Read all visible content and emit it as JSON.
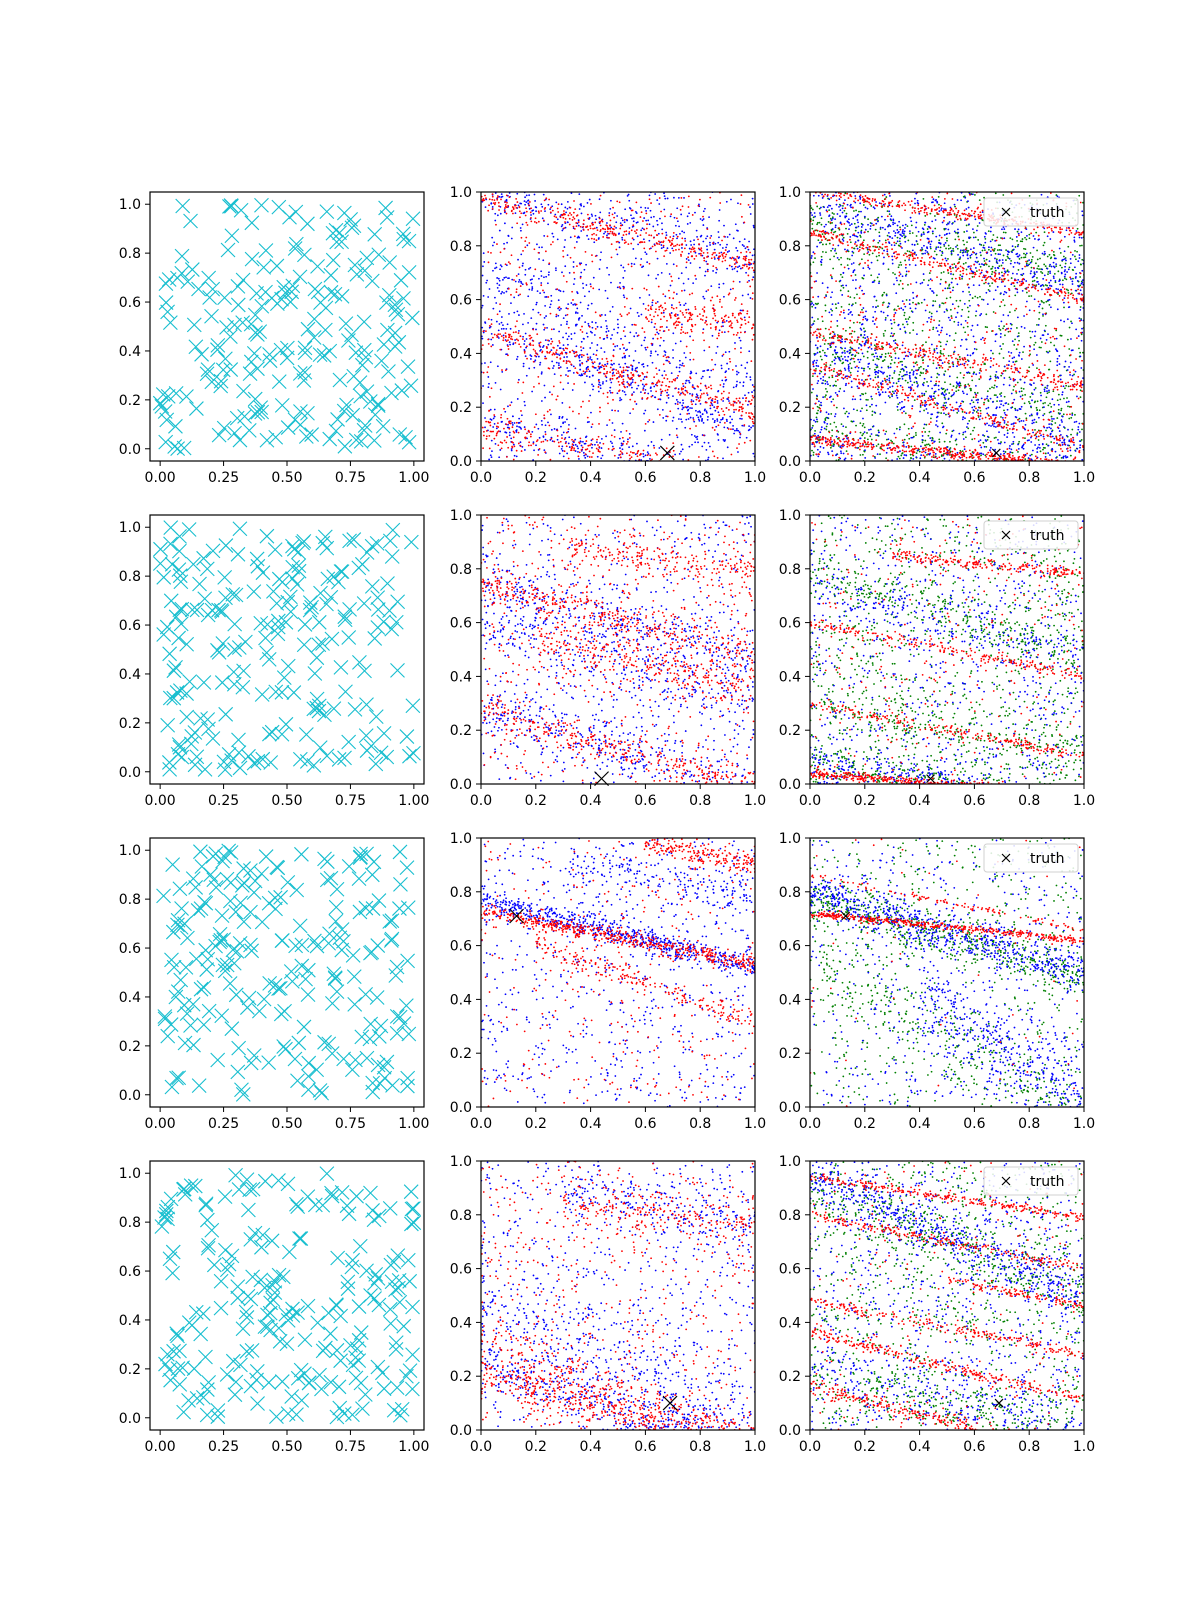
{
  "colors": {
    "cyan": "#17becf",
    "blue": "#0000ff",
    "red": "#ff0000",
    "green": "#008000",
    "truth": "#000000"
  },
  "legend": {
    "label": "truth",
    "placement": "top-right"
  },
  "chart_data": [
    {
      "type": "scatter",
      "row": 0,
      "panel": "samples",
      "xlim": [
        -0.04,
        1.04
      ],
      "ylim": [
        -0.05,
        1.05
      ],
      "xticks": [
        "0.00",
        "0.25",
        "0.50",
        "0.75",
        "1.00"
      ],
      "yticks": [
        "0.0",
        "0.2",
        "0.4",
        "0.6",
        "0.8",
        "1.0"
      ],
      "series": [
        {
          "color": "cyan",
          "marker": "x",
          "count": 220,
          "seed": 11
        }
      ]
    },
    {
      "type": "scatter",
      "row": 0,
      "panel": "posterior",
      "xlim": [
        0,
        1
      ],
      "ylim": [
        0,
        1
      ],
      "xticks": [
        "0.0",
        "0.2",
        "0.4",
        "0.6",
        "0.8",
        "1.0"
      ],
      "yticks": [
        "0.0",
        "0.2",
        "0.4",
        "0.6",
        "0.8",
        "1.0"
      ],
      "truth": [
        0.68,
        0.03
      ],
      "series": [
        {
          "color": "blue",
          "bands": [
            [
              0,
              1.0,
              -0.25,
              0.04,
              250
            ],
            [
              0,
              0.5,
              -0.4,
              0.04,
              300
            ],
            [
              0,
              0.15,
              -0.25,
              0.04,
              250
            ],
            [
              0,
              0.7,
              -0.5,
              0.06,
              200
            ]
          ],
          "background": 700
        },
        {
          "color": "red",
          "bands": [
            [
              0,
              0.98,
              -0.25,
              0.02,
              300
            ],
            [
              0,
              0.48,
              -0.3,
              0.025,
              300
            ],
            [
              0,
              0.12,
              -0.2,
              0.03,
              250
            ],
            [
              0.6,
              0.55,
              -0.1,
              0.03,
              150
            ]
          ],
          "background": 500
        }
      ]
    },
    {
      "type": "scatter",
      "row": 0,
      "panel": "posterior-legend",
      "xlim": [
        0,
        1
      ],
      "ylim": [
        0,
        1
      ],
      "xticks": [
        "0.0",
        "0.2",
        "0.4",
        "0.6",
        "0.8",
        "1.0"
      ],
      "yticks": [
        "0.0",
        "0.2",
        "0.4",
        "0.6",
        "0.8",
        "1.0"
      ],
      "truth": [
        0.68,
        0.03
      ],
      "legend": true,
      "series": [
        {
          "color": "green",
          "bands": [
            [
              0,
              0.9,
              -0.2,
              0.05,
              200
            ],
            [
              0,
              0.45,
              -0.3,
              0.05,
              200
            ],
            [
              0,
              0.12,
              -0.2,
              0.04,
              200
            ]
          ],
          "background": 900
        },
        {
          "color": "blue",
          "bands": [
            [
              0,
              0.95,
              -0.3,
              0.04,
              300
            ],
            [
              0,
              0.4,
              -0.35,
              0.06,
              300
            ],
            [
              0,
              0.08,
              -0.15,
              0.05,
              200
            ]
          ],
          "background": 1100
        },
        {
          "color": "red",
          "bands": [
            [
              0,
              1.0,
              -0.15,
              0.01,
              250
            ],
            [
              0,
              0.85,
              -0.25,
              0.01,
              250
            ],
            [
              0,
              0.48,
              -0.2,
              0.015,
              250
            ],
            [
              0,
              0.08,
              -0.1,
              0.01,
              400
            ],
            [
              0,
              0.35,
              -0.3,
              0.015,
              200
            ]
          ],
          "background": 400
        }
      ]
    },
    {
      "type": "scatter",
      "row": 1,
      "panel": "samples",
      "xlim": [
        -0.04,
        1.04
      ],
      "ylim": [
        -0.05,
        1.05
      ],
      "xticks": [
        "0.00",
        "0.25",
        "0.50",
        "0.75",
        "1.00"
      ],
      "yticks": [
        "0.0",
        "0.2",
        "0.4",
        "0.6",
        "0.8",
        "1.0"
      ],
      "series": [
        {
          "color": "cyan",
          "marker": "x",
          "count": 220,
          "seed": 23
        }
      ]
    },
    {
      "type": "scatter",
      "row": 1,
      "panel": "posterior",
      "xlim": [
        0,
        1
      ],
      "ylim": [
        0,
        1
      ],
      "xticks": [
        "0.0",
        "0.2",
        "0.4",
        "0.6",
        "0.8",
        "1.0"
      ],
      "yticks": [
        "0.0",
        "0.2",
        "0.4",
        "0.6",
        "0.8",
        "1.0"
      ],
      "truth": [
        0.44,
        0.02
      ],
      "series": [
        {
          "color": "blue",
          "bands": [
            [
              0,
              0.75,
              -0.3,
              0.05,
              300
            ],
            [
              0,
              0.3,
              -0.35,
              0.05,
              300
            ],
            [
              0,
              0.6,
              -0.3,
              0.06,
              250
            ]
          ],
          "background": 600
        },
        {
          "color": "red",
          "bands": [
            [
              0,
              0.74,
              -0.25,
              0.03,
              300
            ],
            [
              0,
              0.28,
              -0.3,
              0.03,
              300
            ],
            [
              0.3,
              0.88,
              -0.15,
              0.03,
              200
            ],
            [
              0.2,
              0.55,
              -0.25,
              0.04,
              250
            ]
          ],
          "background": 600
        }
      ]
    },
    {
      "type": "scatter",
      "row": 1,
      "panel": "posterior-legend",
      "xlim": [
        0,
        1
      ],
      "ylim": [
        0,
        1
      ],
      "xticks": [
        "0.0",
        "0.2",
        "0.4",
        "0.6",
        "0.8",
        "1.0"
      ],
      "yticks": [
        "0.0",
        "0.2",
        "0.4",
        "0.6",
        "0.8",
        "1.0"
      ],
      "truth": [
        0.44,
        0.02
      ],
      "legend": true,
      "series": [
        {
          "color": "green",
          "bands": [
            [
              0,
              0.78,
              -0.3,
              0.04,
              250
            ],
            [
              0,
              0.08,
              -0.15,
              0.03,
              300
            ],
            [
              0,
              0.3,
              -0.2,
              0.05,
              200
            ]
          ],
          "background": 900
        },
        {
          "color": "blue",
          "bands": [
            [
              0,
              0.08,
              -0.15,
              0.03,
              300
            ],
            [
              0,
              0.75,
              -0.3,
              0.05,
              200
            ]
          ],
          "background": 700
        },
        {
          "color": "red",
          "bands": [
            [
              0,
              0.04,
              -0.08,
              0.008,
              500
            ],
            [
              0,
              0.6,
              -0.2,
              0.01,
              200
            ],
            [
              0,
              0.3,
              -0.2,
              0.01,
              200
            ],
            [
              0.3,
              0.85,
              -0.1,
              0.01,
              200
            ]
          ],
          "background": 300
        }
      ]
    },
    {
      "type": "scatter",
      "row": 2,
      "panel": "samples",
      "xlim": [
        -0.04,
        1.04
      ],
      "ylim": [
        -0.05,
        1.05
      ],
      "xticks": [
        "0.00",
        "0.25",
        "0.50",
        "0.75",
        "1.00"
      ],
      "yticks": [
        "0.0",
        "0.2",
        "0.4",
        "0.6",
        "0.8",
        "1.0"
      ],
      "series": [
        {
          "color": "cyan",
          "marker": "x",
          "count": 220,
          "seed": 37
        }
      ]
    },
    {
      "type": "scatter",
      "row": 2,
      "panel": "posterior",
      "xlim": [
        0,
        1
      ],
      "ylim": [
        0,
        1
      ],
      "xticks": [
        "0.0",
        "0.2",
        "0.4",
        "0.6",
        "0.8",
        "1.0"
      ],
      "yticks": [
        "0.0",
        "0.2",
        "0.4",
        "0.6",
        "0.8",
        "1.0"
      ],
      "truth": [
        0.13,
        0.71
      ],
      "series": [
        {
          "color": "blue",
          "bands": [
            [
              0,
              0.77,
              -0.25,
              0.02,
              600
            ],
            [
              0.3,
              0.9,
              -0.15,
              0.04,
              150
            ]
          ],
          "background": 700
        },
        {
          "color": "red",
          "bands": [
            [
              0,
              0.73,
              -0.2,
              0.015,
              500
            ],
            [
              0.2,
              0.6,
              -0.35,
              0.02,
              200
            ],
            [
              0.6,
              0.98,
              -0.2,
              0.02,
              200
            ]
          ],
          "background": 300
        }
      ]
    },
    {
      "type": "scatter",
      "row": 2,
      "panel": "posterior-legend",
      "xlim": [
        0,
        1
      ],
      "ylim": [
        0,
        1
      ],
      "xticks": [
        "0.0",
        "0.2",
        "0.4",
        "0.6",
        "0.8",
        "1.0"
      ],
      "yticks": [
        "0.0",
        "0.2",
        "0.4",
        "0.6",
        "0.8",
        "1.0"
      ],
      "truth": [
        0.13,
        0.71
      ],
      "legend": true,
      "series": [
        {
          "color": "green",
          "bands": [
            [
              0,
              0.78,
              -0.3,
              0.04,
              500
            ],
            [
              0,
              0.55,
              -0.6,
              0.08,
              300
            ]
          ],
          "background": 500
        },
        {
          "color": "blue",
          "bands": [
            [
              0,
              0.8,
              -0.3,
              0.04,
              600
            ],
            [
              0.4,
              0.4,
              -0.6,
              0.08,
              400
            ]
          ],
          "background": 500
        },
        {
          "color": "red",
          "bands": [
            [
              0,
              0.72,
              -0.1,
              0.006,
              400
            ],
            [
              0,
              0.86,
              -0.2,
              0.006,
              100
            ]
          ],
          "background": 50
        }
      ]
    },
    {
      "type": "scatter",
      "row": 3,
      "panel": "samples",
      "xlim": [
        -0.04,
        1.04
      ],
      "ylim": [
        -0.05,
        1.05
      ],
      "xticks": [
        "0.00",
        "0.25",
        "0.50",
        "0.75",
        "1.00"
      ],
      "yticks": [
        "0.0",
        "0.2",
        "0.4",
        "0.6",
        "0.8",
        "1.0"
      ],
      "series": [
        {
          "color": "cyan",
          "marker": "x",
          "count": 220,
          "seed": 51
        }
      ]
    },
    {
      "type": "scatter",
      "row": 3,
      "panel": "posterior",
      "xlim": [
        0,
        1
      ],
      "ylim": [
        0,
        1
      ],
      "xticks": [
        "0.0",
        "0.2",
        "0.4",
        "0.6",
        "0.8",
        "1.0"
      ],
      "yticks": [
        "0.0",
        "0.2",
        "0.4",
        "0.6",
        "0.8",
        "1.0"
      ],
      "truth": [
        0.69,
        0.1
      ],
      "series": [
        {
          "color": "blue",
          "bands": [
            [
              0,
              0.25,
              -0.35,
              0.05,
              400
            ],
            [
              0,
              0.5,
              -0.5,
              0.08,
              300
            ],
            [
              0.3,
              0.9,
              -0.2,
              0.05,
              200
            ]
          ],
          "background": 600
        },
        {
          "color": "red",
          "bands": [
            [
              0,
              0.22,
              -0.3,
              0.04,
              500
            ],
            [
              0,
              0.35,
              -0.4,
              0.04,
              200
            ],
            [
              0.3,
              0.85,
              -0.1,
              0.04,
              200
            ]
          ],
          "background": 500
        }
      ]
    },
    {
      "type": "scatter",
      "row": 3,
      "panel": "posterior-legend",
      "xlim": [
        0,
        1
      ],
      "ylim": [
        0,
        1
      ],
      "xticks": [
        "0.0",
        "0.2",
        "0.4",
        "0.6",
        "0.8",
        "1.0"
      ],
      "yticks": [
        "0.0",
        "0.2",
        "0.4",
        "0.6",
        "0.8",
        "1.0"
      ],
      "truth": [
        0.69,
        0.1
      ],
      "legend": true,
      "series": [
        {
          "color": "green",
          "bands": [
            [
              0,
              0.9,
              -0.4,
              0.05,
              300
            ],
            [
              0,
              0.2,
              -0.2,
              0.05,
              200
            ]
          ],
          "background": 900
        },
        {
          "color": "blue",
          "bands": [
            [
              0,
              0.95,
              -0.45,
              0.05,
              500
            ],
            [
              0,
              0.25,
              -0.25,
              0.05,
              200
            ]
          ],
          "background": 800
        },
        {
          "color": "red",
          "bands": [
            [
              0,
              0.94,
              -0.15,
              0.008,
              250
            ],
            [
              0,
              0.8,
              -0.2,
              0.01,
              200
            ],
            [
              0,
              0.48,
              -0.2,
              0.01,
              200
            ],
            [
              0,
              0.36,
              -0.25,
              0.01,
              250
            ],
            [
              0,
              0.16,
              -0.25,
              0.015,
              300
            ],
            [
              0.5,
              0.56,
              -0.2,
              0.01,
              100
            ]
          ],
          "background": 200
        }
      ]
    }
  ]
}
